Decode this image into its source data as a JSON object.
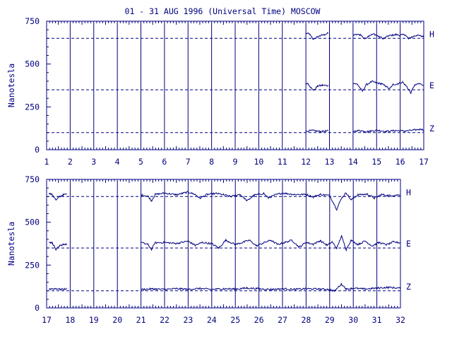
{
  "title": "01 - 31 AUG 1996 (Universal Time) MOSCOW",
  "colors": {
    "ink": "#000080",
    "background": "#ffffff"
  },
  "chart_data": [
    {
      "type": "line",
      "panel": "top",
      "ylabel": "Nanotesla",
      "ylim": [
        0,
        750
      ],
      "yticks": [
        0,
        250,
        500,
        750
      ],
      "yticklabels": [
        "0",
        "250",
        "500",
        "750"
      ],
      "xlim": [
        1,
        17
      ],
      "xticklabels": [
        "1",
        "2",
        "3",
        "4",
        "5",
        "6",
        "7",
        "8",
        "9",
        "10",
        "11",
        "12",
        "13",
        "14",
        "15",
        "16",
        "17"
      ],
      "vgrid": true,
      "series": [
        {
          "name": "H",
          "baseline": 650,
          "segments": [
            {
              "x0": 12.0,
              "x1": 12.95,
              "points": [
                [
                  12.0,
                  680
                ],
                [
                  12.15,
                  675
                ],
                [
                  12.3,
                  645
                ],
                [
                  12.45,
                  655
                ],
                [
                  12.6,
                  665
                ],
                [
                  12.8,
                  672
                ],
                [
                  12.95,
                  680
                ]
              ]
            },
            {
              "x0": 14.0,
              "x1": 17.0,
              "points": [
                [
                  14.0,
                  670
                ],
                [
                  14.3,
                  672
                ],
                [
                  14.5,
                  648
                ],
                [
                  14.7,
                  668
                ],
                [
                  14.9,
                  675
                ],
                [
                  15.1,
                  660
                ],
                [
                  15.3,
                  648
                ],
                [
                  15.5,
                  664
                ],
                [
                  15.8,
                  672
                ],
                [
                  16.0,
                  668
                ],
                [
                  16.2,
                  672
                ],
                [
                  16.35,
                  648
                ],
                [
                  16.5,
                  658
                ],
                [
                  16.7,
                  668
                ],
                [
                  16.9,
                  662
                ],
                [
                  17.0,
                  664
                ]
              ]
            }
          ]
        },
        {
          "name": "E",
          "baseline": 350,
          "segments": [
            {
              "x0": 12.0,
              "x1": 12.95,
              "points": [
                [
                  12.0,
                  390
                ],
                [
                  12.1,
                  385
                ],
                [
                  12.25,
                  355
                ],
                [
                  12.35,
                  348
                ],
                [
                  12.5,
                  372
                ],
                [
                  12.7,
                  376
                ],
                [
                  12.95,
                  374
                ]
              ]
            },
            {
              "x0": 14.0,
              "x1": 17.0,
              "points": [
                [
                  14.0,
                  390
                ],
                [
                  14.2,
                  380
                ],
                [
                  14.4,
                  340
                ],
                [
                  14.55,
                  378
                ],
                [
                  14.8,
                  398
                ],
                [
                  15.0,
                  390
                ],
                [
                  15.2,
                  385
                ],
                [
                  15.4,
                  370
                ],
                [
                  15.55,
                  355
                ],
                [
                  15.7,
                  380
                ],
                [
                  15.9,
                  385
                ],
                [
                  16.1,
                  395
                ],
                [
                  16.3,
                  365
                ],
                [
                  16.45,
                  330
                ],
                [
                  16.6,
                  375
                ],
                [
                  16.8,
                  385
                ],
                [
                  17.0,
                  378
                ]
              ]
            }
          ]
        },
        {
          "name": "Z",
          "baseline": 100,
          "segments": [
            {
              "x0": 12.0,
              "x1": 12.95,
              "points": [
                [
                  12.0,
                  108
                ],
                [
                  12.3,
                  112
                ],
                [
                  12.6,
                  106
                ],
                [
                  12.95,
                  110
                ]
              ]
            },
            {
              "x0": 14.0,
              "x1": 17.0,
              "points": [
                [
                  14.0,
                  108
                ],
                [
                  14.3,
                  112
                ],
                [
                  14.6,
                  106
                ],
                [
                  15.0,
                  114
                ],
                [
                  15.4,
                  107
                ],
                [
                  15.8,
                  112
                ],
                [
                  16.2,
                  109
                ],
                [
                  16.6,
                  115
                ],
                [
                  16.9,
                  120
                ],
                [
                  17.0,
                  113
                ]
              ]
            }
          ]
        }
      ]
    },
    {
      "type": "line",
      "panel": "bottom",
      "ylabel": "Nanotesla",
      "ylim": [
        0,
        750
      ],
      "yticks": [
        0,
        250,
        500,
        750
      ],
      "yticklabels": [
        "0",
        "250",
        "500",
        "750"
      ],
      "xlim": [
        17,
        32
      ],
      "xticklabels": [
        "17",
        "18",
        "19",
        "20",
        "21",
        "22",
        "23",
        "24",
        "25",
        "26",
        "27",
        "28",
        "29",
        "30",
        "31",
        "32"
      ],
      "vgrid": true,
      "series": [
        {
          "name": "H",
          "baseline": 650,
          "segments": [
            {
              "x0": 17.1,
              "x1": 17.85,
              "points": [
                [
                  17.1,
                  668
                ],
                [
                  17.25,
                  660
                ],
                [
                  17.4,
                  628
                ],
                [
                  17.55,
                  650
                ],
                [
                  17.7,
                  660
                ],
                [
                  17.85,
                  664
                ]
              ]
            },
            {
              "x0": 21.0,
              "x1": 32.0,
              "points": [
                [
                  21.0,
                  660
                ],
                [
                  21.3,
                  652
                ],
                [
                  21.45,
                  625
                ],
                [
                  21.6,
                  662
                ],
                [
                  22.0,
                  670
                ],
                [
                  22.5,
                  660
                ],
                [
                  23.0,
                  676
                ],
                [
                  23.3,
                  662
                ],
                [
                  23.5,
                  640
                ],
                [
                  23.8,
                  662
                ],
                [
                  24.2,
                  668
                ],
                [
                  24.5,
                  660
                ],
                [
                  24.8,
                  650
                ],
                [
                  25.2,
                  662
                ],
                [
                  25.5,
                  625
                ],
                [
                  25.8,
                  658
                ],
                [
                  26.2,
                  668
                ],
                [
                  26.4,
                  642
                ],
                [
                  26.7,
                  660
                ],
                [
                  27.0,
                  670
                ],
                [
                  27.5,
                  662
                ],
                [
                  28.0,
                  662
                ],
                [
                  28.3,
                  648
                ],
                [
                  28.6,
                  662
                ],
                [
                  29.0,
                  656
                ],
                [
                  29.3,
                  575
                ],
                [
                  29.5,
                  640
                ],
                [
                  29.7,
                  672
                ],
                [
                  29.9,
                  630
                ],
                [
                  30.2,
                  660
                ],
                [
                  30.6,
                  664
                ],
                [
                  30.9,
                  640
                ],
                [
                  31.2,
                  662
                ],
                [
                  31.5,
                  655
                ],
                [
                  32.0,
                  660
                ]
              ]
            }
          ]
        },
        {
          "name": "E",
          "baseline": 350,
          "segments": [
            {
              "x0": 17.1,
              "x1": 17.85,
              "points": [
                [
                  17.1,
                  385
                ],
                [
                  17.25,
                  378
                ],
                [
                  17.4,
                  338
                ],
                [
                  17.55,
                  360
                ],
                [
                  17.7,
                  372
                ],
                [
                  17.85,
                  370
                ]
              ]
            },
            {
              "x0": 21.0,
              "x1": 32.0,
              "points": [
                [
                  21.0,
                  382
                ],
                [
                  21.3,
                  370
                ],
                [
                  21.45,
                  340
                ],
                [
                  21.6,
                  380
                ],
                [
                  22.0,
                  382
                ],
                [
                  22.5,
                  376
                ],
                [
                  23.0,
                  390
                ],
                [
                  23.3,
                  365
                ],
                [
                  23.6,
                  382
                ],
                [
                  24.0,
                  375
                ],
                [
                  24.3,
                  350
                ],
                [
                  24.6,
                  395
                ],
                [
                  25.0,
                  370
                ],
                [
                  25.3,
                  382
                ],
                [
                  25.6,
                  395
                ],
                [
                  25.9,
                  362
                ],
                [
                  26.2,
                  380
                ],
                [
                  26.5,
                  395
                ],
                [
                  26.8,
                  370
                ],
                [
                  27.1,
                  382
                ],
                [
                  27.4,
                  395
                ],
                [
                  27.7,
                  355
                ],
                [
                  28.0,
                  382
                ],
                [
                  28.3,
                  372
                ],
                [
                  28.6,
                  392
                ],
                [
                  28.9,
                  365
                ],
                [
                  29.1,
                  385
                ],
                [
                  29.3,
                  348
                ],
                [
                  29.5,
                  420
                ],
                [
                  29.7,
                  340
                ],
                [
                  29.9,
                  395
                ],
                [
                  30.2,
                  370
                ],
                [
                  30.5,
                  390
                ],
                [
                  30.8,
                  362
                ],
                [
                  31.1,
                  382
                ],
                [
                  31.4,
                  368
                ],
                [
                  31.7,
                  385
                ],
                [
                  32.0,
                  380
                ]
              ]
            }
          ]
        },
        {
          "name": "Z",
          "baseline": 100,
          "segments": [
            {
              "x0": 17.1,
              "x1": 17.85,
              "points": [
                [
                  17.1,
                  110
                ],
                [
                  17.4,
                  113
                ],
                [
                  17.6,
                  108
                ],
                [
                  17.85,
                  112
                ]
              ]
            },
            {
              "x0": 21.0,
              "x1": 32.0,
              "points": [
                [
                  21.0,
                  108
                ],
                [
                  21.5,
                  111
                ],
                [
                  22.0,
                  108
                ],
                [
                  22.5,
                  112
                ],
                [
                  23.0,
                  109
                ],
                [
                  23.5,
                  113
                ],
                [
                  24.0,
                  108
                ],
                [
                  24.5,
                  112
                ],
                [
                  25.0,
                  110
                ],
                [
                  25.5,
                  116
                ],
                [
                  26.0,
                  112
                ],
                [
                  26.5,
                  108
                ],
                [
                  27.0,
                  112
                ],
                [
                  27.5,
                  108
                ],
                [
                  28.0,
                  112
                ],
                [
                  28.5,
                  110
                ],
                [
                  29.0,
                  108
                ],
                [
                  29.2,
                  98
                ],
                [
                  29.5,
                  140
                ],
                [
                  29.7,
                  110
                ],
                [
                  30.0,
                  115
                ],
                [
                  30.5,
                  110
                ],
                [
                  31.0,
                  116
                ],
                [
                  31.5,
                  120
                ],
                [
                  32.0,
                  115
                ]
              ]
            }
          ]
        }
      ]
    }
  ]
}
